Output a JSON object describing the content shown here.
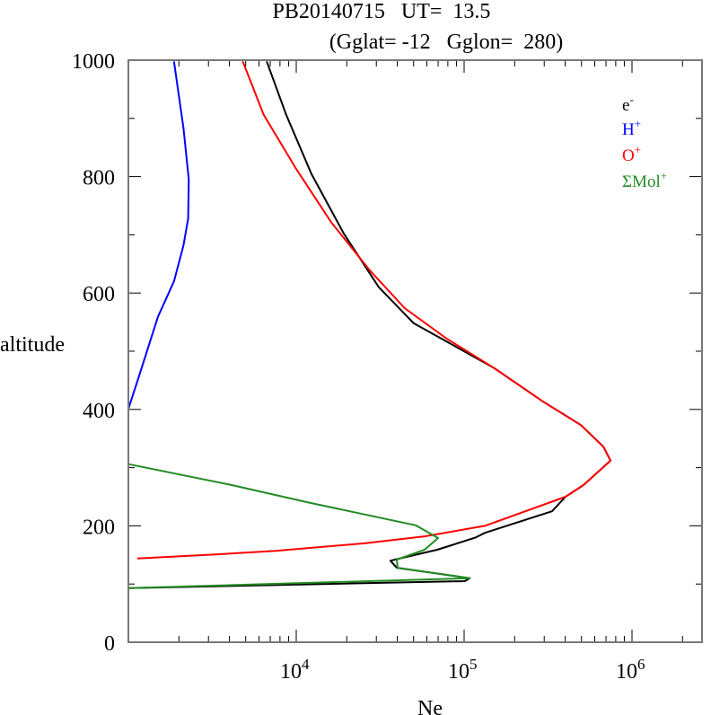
{
  "chart_data": {
    "type": "line",
    "title_line1": "PB20140715   UT=  13.5",
    "title_line2": "(Gglat= -12   Gglon=  280)",
    "xlabel": "Ne",
    "ylabel": "altitude",
    "xscale": "log",
    "xlim": [
      1000,
      2500000
    ],
    "ylim": [
      0,
      1000
    ],
    "yticks": [
      0,
      200,
      400,
      600,
      800,
      1000
    ],
    "ytick_labels": [
      "0",
      "200",
      "400",
      "600",
      "800",
      "1000"
    ],
    "xticks": [
      10000,
      100000,
      1000000
    ],
    "xtick_labels": [
      {
        "base": "10",
        "exp": "4"
      },
      {
        "base": "10",
        "exp": "5"
      },
      {
        "base": "10",
        "exp": "6"
      }
    ],
    "legend_position": "top-right",
    "grid": false,
    "series": [
      {
        "name": "e-",
        "label_base": "e",
        "label_sup": "-",
        "color": "#000000",
        "Ne": [
          6670,
          8690,
          12300,
          19200,
          31000,
          50100,
          78300,
          151000,
          293000,
          497000,
          675000,
          745000,
          514000,
          402000,
          334000,
          133000,
          117000,
          69200,
          38700,
          36400,
          39700,
          108000,
          101000,
          1000
        ],
        "alt": [
          998,
          907,
          805,
          702,
          610,
          548,
          517,
          471,
          414,
          373,
          336,
          312,
          270,
          250,
          225,
          188,
          180,
          159,
          142,
          140,
          128,
          110,
          105,
          93
        ]
      },
      {
        "name": "H+",
        "label_base": "H",
        "label_sup": "+",
        "color": "#0000ff",
        "Ne": [
          1870,
          2130,
          2290,
          2270,
          2130,
          1870,
          1500,
          1150,
          1000
        ],
        "alt": [
          998,
          883,
          795,
          728,
          682,
          620,
          559,
          455,
          401
        ]
      },
      {
        "name": "O+",
        "label_base": "O",
        "label_sup": "+",
        "color": "#ff0000",
        "Ne": [
          4800,
          6380,
          9900,
          16100,
          27200,
          44200,
          78300,
          151000,
          293000,
          497000,
          675000,
          745000,
          514000,
          402000,
          133000,
          58200,
          25800,
          7540,
          3300,
          1130
        ],
        "alt": [
          998,
          907,
          815,
          722,
          640,
          574,
          522,
          471,
          414,
          373,
          336,
          312,
          270,
          250,
          200,
          182,
          170,
          157,
          151,
          144
        ]
      },
      {
        "name": "ΣMol+",
        "label_base": "ΣMol",
        "label_sup": "+",
        "color": "#228b22",
        "Ne": [
          1000,
          4120,
          12300,
          51400,
          70000,
          58200,
          39700,
          40200,
          108000,
          1000
        ],
        "alt": [
          306,
          270,
          239,
          201,
          179,
          159,
          142,
          128,
          110,
          93
        ]
      }
    ]
  }
}
